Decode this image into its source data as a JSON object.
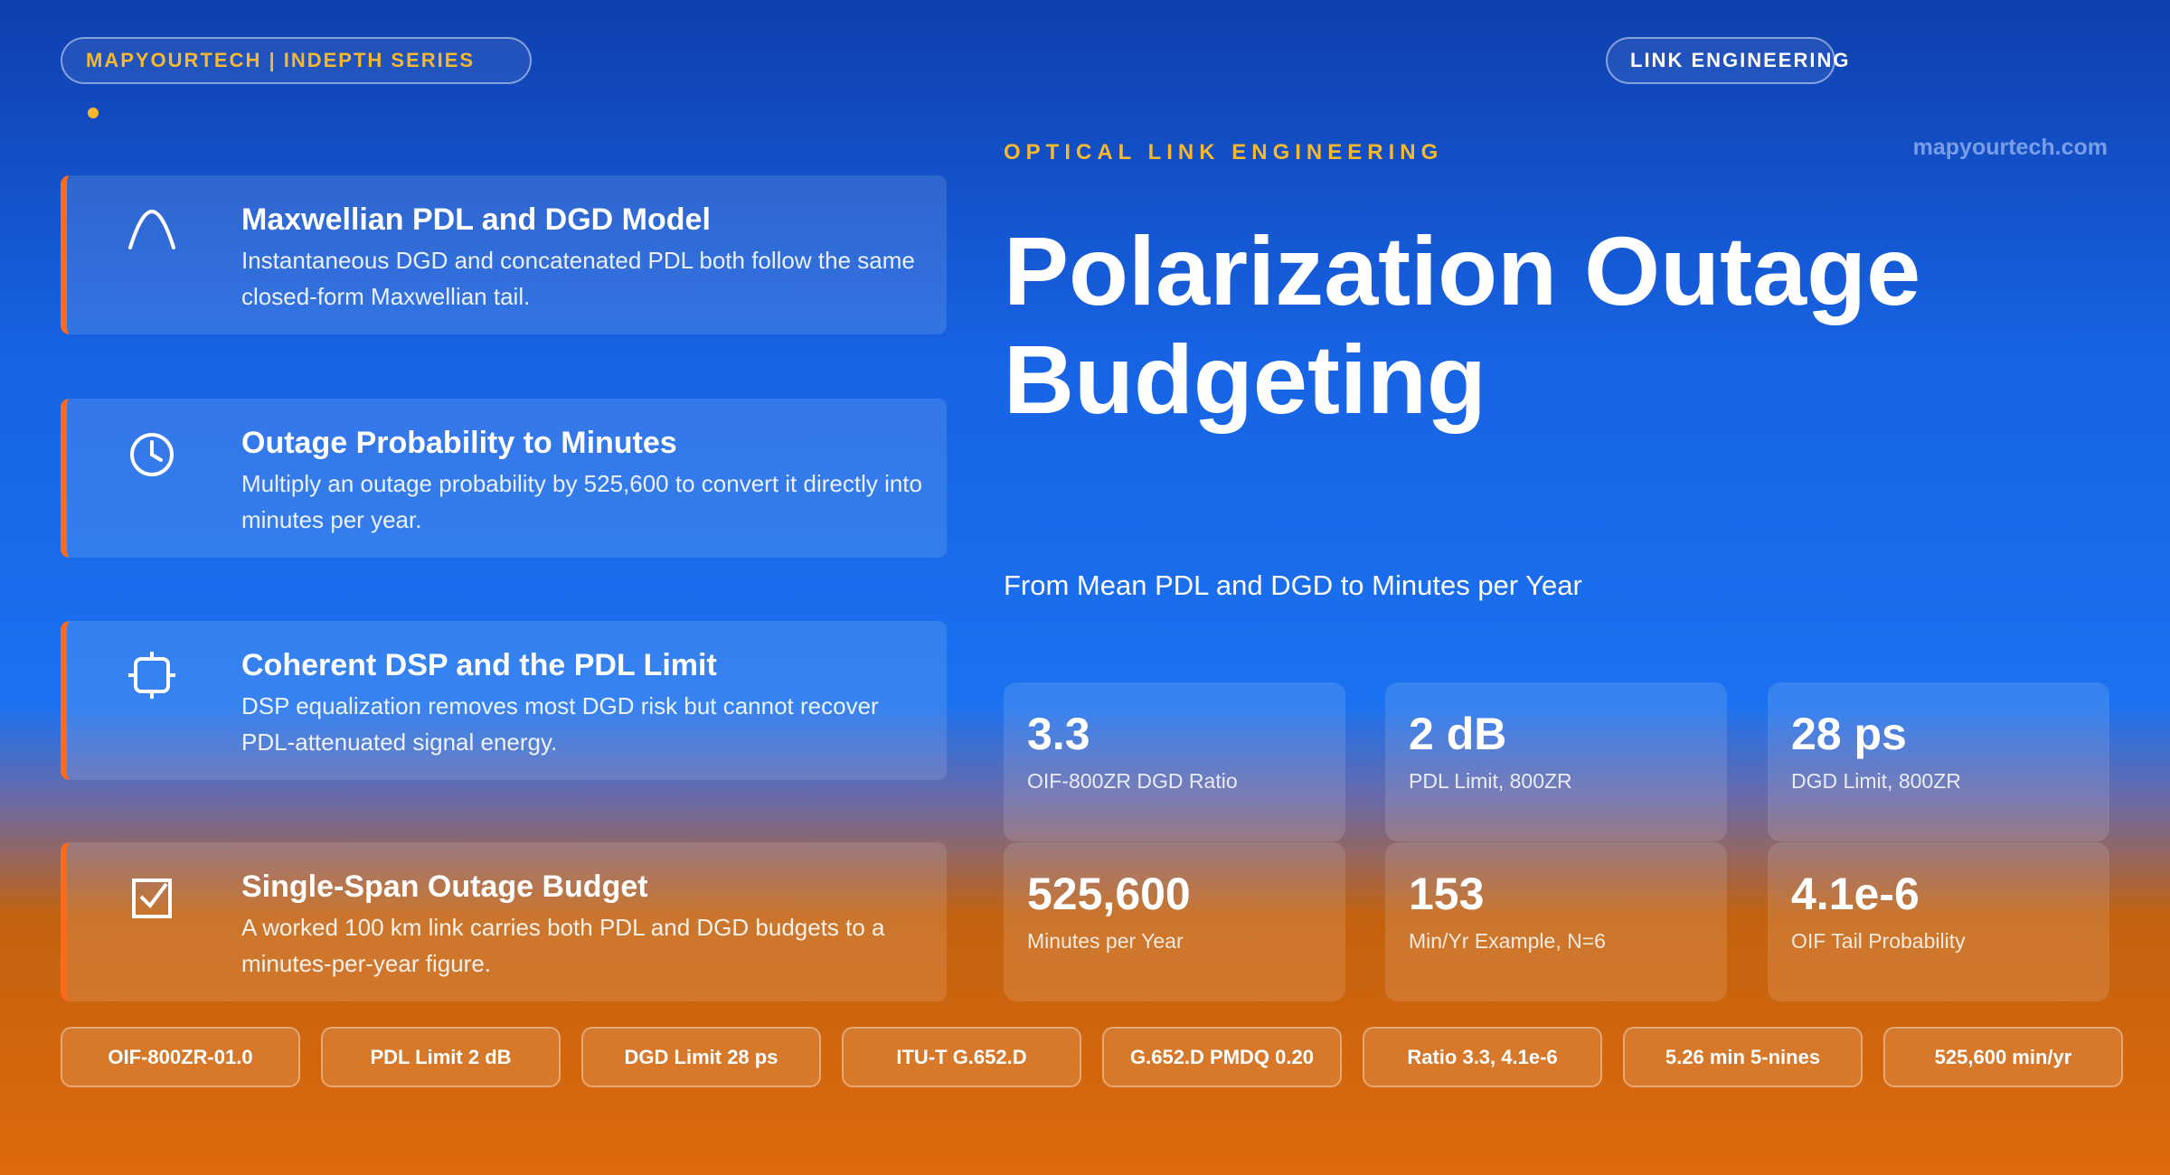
{
  "header": {
    "series": "MAPYOURTECH | INDEPTH SERIES",
    "tag": "LINK ENGINEERING",
    "eyebrow": "OPTICAL LINK ENGINEERING",
    "site": "mapyourtech.com",
    "title_lines": [
      "Polarization Outage",
      "Budgeting"
    ],
    "subtitle": "From Mean PDL and DGD to Minutes per Year"
  },
  "cards": [
    {
      "title": "Maxwellian PDL and DGD Model",
      "text": "Instantaneous DGD and concatenated PDL both follow the same closed-form Maxwellian tail."
    },
    {
      "title": "Outage Probability to Minutes",
      "text": "Multiply an outage probability by 525,600 to convert it directly into minutes per year."
    },
    {
      "title": "Coherent DSP and the PDL Limit",
      "text": "DSP equalization removes most DGD risk but cannot recover PDL-attenuated signal energy."
    },
    {
      "title": "Single-Span Outage Budget",
      "text": "A worked 100 km link carries both PDL and DGD budgets to a minutes-per-year figure."
    }
  ],
  "stats": [
    {
      "value": "3.3",
      "label": "OIF-800ZR DGD Ratio"
    },
    {
      "value": "2 dB",
      "label": "PDL Limit, 800ZR"
    },
    {
      "value": "28 ps",
      "label": "DGD Limit, 800ZR"
    },
    {
      "value": "525,600",
      "label": "Minutes per Year"
    },
    {
      "value": "153",
      "label": "Min/Yr Example, N=6"
    },
    {
      "value": "4.1e-6",
      "label": "OIF Tail Probability"
    }
  ],
  "chips": [
    "OIF-800ZR-01.0",
    "PDL Limit 2 dB",
    "DGD Limit 28 ps",
    "ITU-T G.652.D",
    "G.652.D PMDQ 0.20",
    "Ratio 3.3, 4.1e-6",
    "5.26 min 5-nines",
    "525,600 min/yr"
  ]
}
